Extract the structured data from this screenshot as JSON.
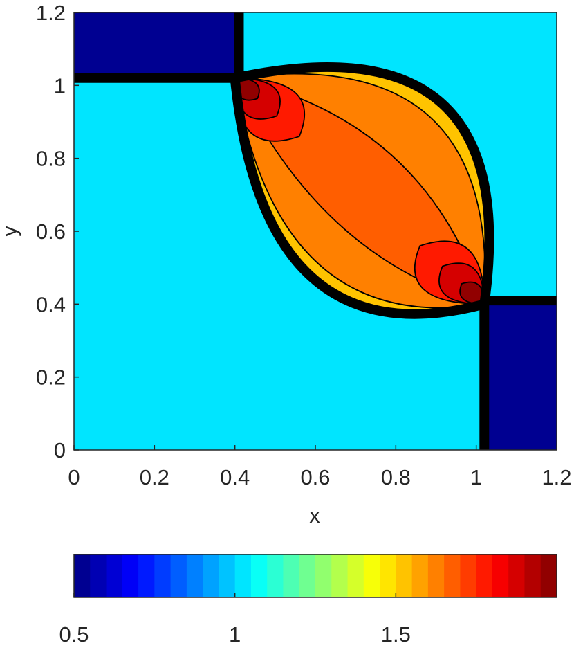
{
  "chart_data": {
    "type": "contour",
    "xlabel": "x",
    "ylabel": "y",
    "xlim": [
      0,
      1.2
    ],
    "ylim": [
      0,
      1.2
    ],
    "xticks": [
      0,
      0.2,
      0.4,
      0.6,
      0.8,
      1,
      1.2
    ],
    "yticks": [
      0,
      0.2,
      0.4,
      0.6,
      0.8,
      1,
      1.2
    ],
    "colormap": "jet",
    "colorbar": {
      "clim": [
        0.5,
        2
      ],
      "ticks": [
        0.5,
        1,
        1.5
      ],
      "levels": 30
    },
    "regions": [
      {
        "value": 1.0
      },
      {
        "value": 0.5
      },
      {
        "value": 0.5
      },
      {
        "value": 1.5
      },
      {
        "value": 1.6
      },
      {
        "value": 1.65
      },
      {
        "value": 1.75
      },
      {
        "value": 1.85
      },
      {
        "value": 1.95
      }
    ]
  }
}
